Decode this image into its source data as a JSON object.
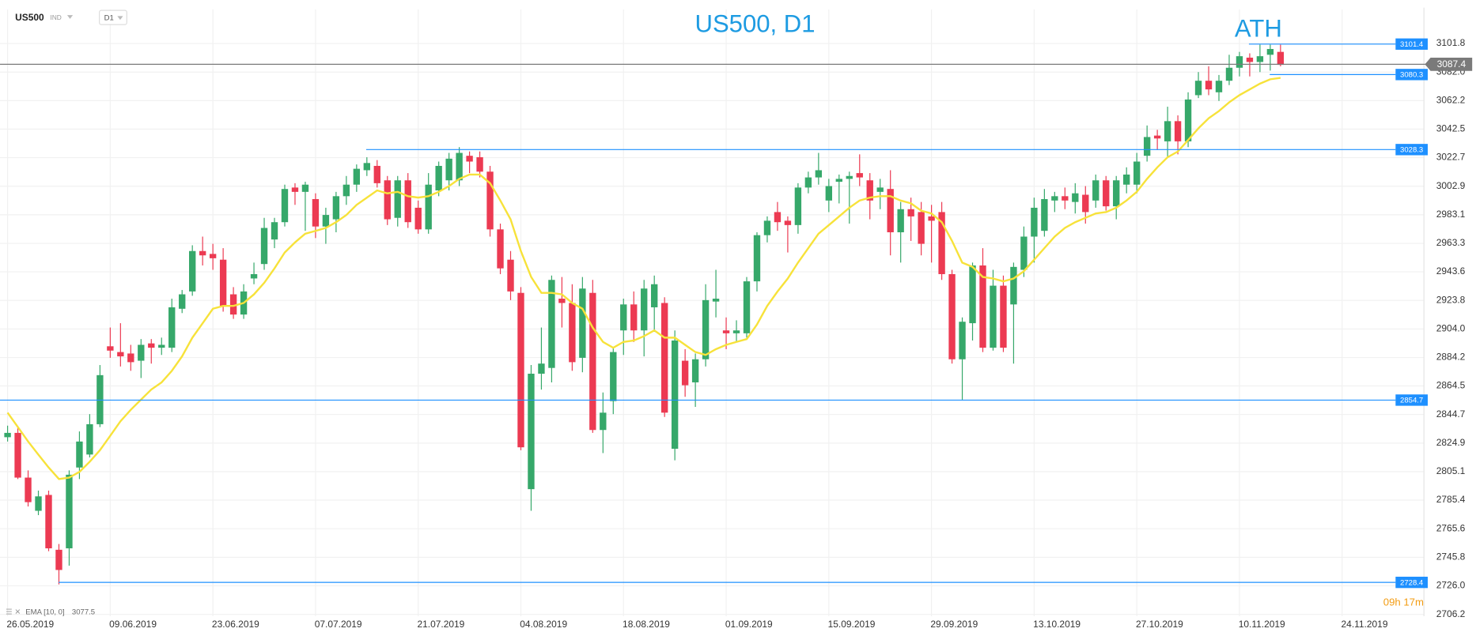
{
  "header": {
    "symbol": "US500",
    "market": "IND",
    "timeframe": "D1"
  },
  "chart_data": {
    "type": "candlestick",
    "title": "US500, D1",
    "annotation": "ATH",
    "timer": "09h 17m",
    "up_color": "#36a86a",
    "down_color": "#ec3a52",
    "level_color": "#1e90ff",
    "price_color": "#7a7a7a",
    "grid": true,
    "categories": [
      "26.05.2019",
      null,
      null,
      null,
      null,
      null,
      null,
      null,
      null,
      null,
      "09.06.2019",
      null,
      null,
      null,
      null,
      null,
      null,
      null,
      null,
      null,
      "23.06.2019",
      null,
      null,
      null,
      null,
      null,
      null,
      null,
      null,
      null,
      "07.07.2019",
      null,
      null,
      null,
      null,
      null,
      null,
      null,
      null,
      null,
      "21.07.2019",
      null,
      null,
      null,
      null,
      null,
      null,
      null,
      null,
      null,
      "04.08.2019",
      null,
      null,
      null,
      null,
      null,
      null,
      null,
      null,
      null,
      "18.08.2019",
      null,
      null,
      null,
      null,
      null,
      null,
      null,
      null,
      null,
      "01.09.2019",
      null,
      null,
      null,
      null,
      null,
      null,
      null,
      null,
      null,
      "15.09.2019",
      null,
      null,
      null,
      null,
      null,
      null,
      null,
      null,
      null,
      "29.09.2019",
      null,
      null,
      null,
      null,
      null,
      null,
      null,
      null,
      null,
      "13.10.2019",
      null,
      null,
      null,
      null,
      null,
      null,
      null,
      null,
      null,
      "27.10.2019",
      null,
      null,
      null,
      null,
      null,
      null,
      null,
      null,
      null,
      "10.11.2019",
      null,
      null,
      null,
      null,
      null,
      null,
      null,
      null,
      null,
      "24.11.2019"
    ],
    "open": [
      2829,
      2832,
      2801,
      2778,
      2789,
      2751,
      2752,
      2808,
      2817,
      2838,
      2892,
      2888,
      2887,
      2882,
      2894,
      2891,
      2891,
      2918,
      2930,
      2958,
      2956,
      2952,
      2928,
      2914,
      2939,
      2949,
      2966,
      2978,
      3002,
      2999,
      2994,
      2975,
      2980,
      2996,
      3004,
      3014,
      3017,
      3007,
      2981,
      3007,
      2988,
      2973,
      3000,
      3007,
      3007,
      3024,
      3023,
      3013,
      2973,
      2952,
      2929,
      2793,
      2873,
      2877,
      2925,
      2922,
      2884,
      2929,
      2834,
      2854,
      2903,
      2921,
      2903,
      2919,
      2922,
      2821,
      2882,
      2867,
      2883,
      2923,
      2903,
      2901,
      2901,
      2937,
      2969,
      2985,
      2979,
      2976,
      3002,
      3009,
      2993,
      3006,
      3008,
      3012,
      3007,
      2999,
      3001,
      2971,
      2987,
      2985,
      2982,
      2985,
      2942,
      2883,
      2908,
      2948,
      2891,
      2934,
      2921,
      2945,
      2968,
      2972,
      2993,
      2996,
      2992,
      2997,
      2993,
      3007,
      2989,
      3004,
      3004,
      3024,
      3038,
      3034,
      3048,
      3034,
      3066,
      3076,
      3068,
      3076,
      3085,
      3092,
      3089,
      3094,
      3096,
      null,
      null,
      null,
      null,
      null,
      null
    ],
    "high": [
      2837,
      2836,
      2806,
      2792,
      2792,
      2755,
      2806,
      2833,
      2845,
      2879,
      2905,
      2908,
      2893,
      2897,
      2897,
      2898,
      2925,
      2931,
      2962,
      2968,
      2963,
      2960,
      2933,
      2935,
      2950,
      2981,
      2981,
      3004,
      3005,
      3006,
      2998,
      2988,
      2999,
      3010,
      3018,
      3023,
      3021,
      3010,
      3010,
      3012,
      2993,
      3012,
      3020,
      3026,
      3030,
      3027,
      3027,
      3017,
      2977,
      2958,
      2933,
      2879,
      2905,
      2941,
      2940,
      2935,
      2940,
      2938,
      2860,
      2891,
      2925,
      2930,
      2938,
      2941,
      2926,
      2903,
      2890,
      2887,
      2935,
      2945,
      2912,
      2910,
      2940,
      2971,
      2982,
      2992,
      2982,
      3005,
      3013,
      3026,
      3008,
      3011,
      3013,
      3025,
      3012,
      3008,
      3014,
      2992,
      2995,
      2992,
      2990,
      2992,
      2945,
      2912,
      2950,
      2960,
      2945,
      2941,
      2950,
      2975,
      2995,
      3001,
      2999,
      3002,
      3005,
      3003,
      3011,
      3010,
      3010,
      3016,
      3026,
      3045,
      3042,
      3058,
      3052,
      3068,
      3082,
      3086,
      3080,
      3094,
      3096,
      3095,
      3101,
      3101,
      3101,
      null,
      null,
      null,
      null,
      null,
      null
    ],
    "low": [
      2826,
      2800,
      2781,
      2775,
      2750,
      2727,
      2740,
      2800,
      2815,
      2836,
      2884,
      2878,
      2875,
      2870,
      2880,
      2886,
      2888,
      2915,
      2927,
      2948,
      2945,
      2916,
      2911,
      2911,
      2935,
      2945,
      2960,
      2975,
      2990,
      2972,
      2967,
      2963,
      2971,
      2990,
      2999,
      3010,
      3002,
      2976,
      2975,
      2974,
      2970,
      2970,
      2996,
      3000,
      3003,
      3012,
      3009,
      2968,
      2942,
      2924,
      2820,
      2778,
      2862,
      2867,
      2905,
      2875,
      2874,
      2832,
      2818,
      2845,
      2886,
      2895,
      2885,
      2902,
      2843,
      2813,
      2857,
      2850,
      2878,
      2912,
      2890,
      2895,
      2898,
      2930,
      2964,
      2972,
      2957,
      2970,
      2998,
      3004,
      2985,
      2991,
      2977,
      3003,
      2980,
      2987,
      2955,
      2950,
      2965,
      2955,
      2950,
      2938,
      2880,
      2855,
      2896,
      2888,
      2889,
      2888,
      2880,
      2940,
      2950,
      2968,
      2985,
      2987,
      2984,
      2977,
      2988,
      2986,
      2980,
      2998,
      2998,
      3020,
      3028,
      3023,
      3025,
      3030,
      3064,
      3066,
      3062,
      3073,
      3079,
      3079,
      3082,
      3083,
      3086,
      null,
      null,
      null,
      null,
      null,
      null
    ],
    "close": [
      2832,
      2801,
      2784,
      2788,
      2752,
      2737,
      2803,
      2826,
      2838,
      2872,
      2889,
      2885,
      2881,
      2893,
      2891,
      2893,
      2919,
      2928,
      2958,
      2955,
      2953,
      2920,
      2914,
      2930,
      2942,
      2974,
      2978,
      3001,
      2999,
      3004,
      2975,
      2983,
      2996,
      3004,
      3015,
      3019,
      3005,
      2980,
      3007,
      2978,
      2973,
      3004,
      3017,
      3022,
      3026,
      3020,
      3013,
      2973,
      2946,
      2930,
      2822,
      2873,
      2880,
      2938,
      2922,
      2881,
      2932,
      2834,
      2846,
      2888,
      2921,
      2903,
      2932,
      2935,
      2846,
      2896,
      2865,
      2883,
      2924,
      2925,
      2901,
      2903,
      2937,
      2969,
      2979,
      2978,
      2976,
      3002,
      3009,
      3014,
      3003,
      3008,
      3010,
      3009,
      2993,
      3002,
      2971,
      2987,
      2982,
      2963,
      2979,
      2942,
      2883,
      2909,
      2948,
      2891,
      2934,
      2891,
      2947,
      2968,
      2988,
      2994,
      2996,
      2993,
      2998,
      2985,
      3007,
      2989,
      3007,
      3011,
      3020,
      3037,
      3036,
      3048,
      3034,
      3063,
      3076,
      3070,
      3076,
      3085,
      3093,
      3089,
      3093,
      3098,
      3087,
      null,
      null,
      null,
      null,
      null,
      null
    ],
    "ema": {
      "name": "EMA [10, 0]",
      "legend_value": 3077.5,
      "color": "#f7e23a",
      "values": [
        2846,
        2836,
        2826,
        2817,
        2808,
        2800,
        2801,
        2805,
        2812,
        2820,
        2830,
        2840,
        2848,
        2855,
        2862,
        2867,
        2875,
        2885,
        2898,
        2908,
        2918,
        2920,
        2920,
        2922,
        2928,
        2936,
        2946,
        2957,
        2964,
        2970,
        2972,
        2974,
        2978,
        2983,
        2990,
        2995,
        3000,
        2998,
        2999,
        2996,
        2995,
        2996,
        2999,
        3003,
        3008,
        3011,
        3011,
        3005,
        2993,
        2980,
        2958,
        2940,
        2929,
        2929,
        2928,
        2922,
        2918,
        2905,
        2895,
        2891,
        2895,
        2896,
        2899,
        2903,
        2898,
        2898,
        2893,
        2888,
        2886,
        2890,
        2893,
        2895,
        2897,
        2907,
        2920,
        2930,
        2939,
        2950,
        2960,
        2970,
        2976,
        2982,
        2988,
        2993,
        2995,
        2996,
        2996,
        2993,
        2991,
        2986,
        2984,
        2978,
        2965,
        2950,
        2947,
        2940,
        2939,
        2937,
        2939,
        2944,
        2952,
        2960,
        2968,
        2974,
        2978,
        2981,
        2984,
        2985,
        2988,
        2993,
        2999,
        3008,
        3016,
        3023,
        3027,
        3035,
        3043,
        3050,
        3055,
        3061,
        3066,
        3070,
        3074,
        3077,
        3078,
        null,
        null,
        null,
        null,
        null,
        null
      ]
    },
    "levels": [
      3101.4,
      3080.3,
      3028.3,
      2854.7,
      2728.4
    ],
    "current_price": 3087.4,
    "ylim": [
      2705,
      3125.4
    ],
    "yticks": [
      3101.8,
      {
        "value": 3082,
        "label": "3082.0"
      },
      3062.2,
      3042.5,
      3022.7,
      3002.9,
      2983.1,
      2963.3,
      2943.6,
      2923.8,
      {
        "value": 2904,
        "label": "2904.0"
      },
      2884.2,
      2864.5,
      2844.7,
      2824.9,
      2805.1,
      2785.4,
      2765.6,
      2745.8,
      {
        "value": 2726,
        "label": "2726.0"
      },
      2706.2
    ]
  }
}
